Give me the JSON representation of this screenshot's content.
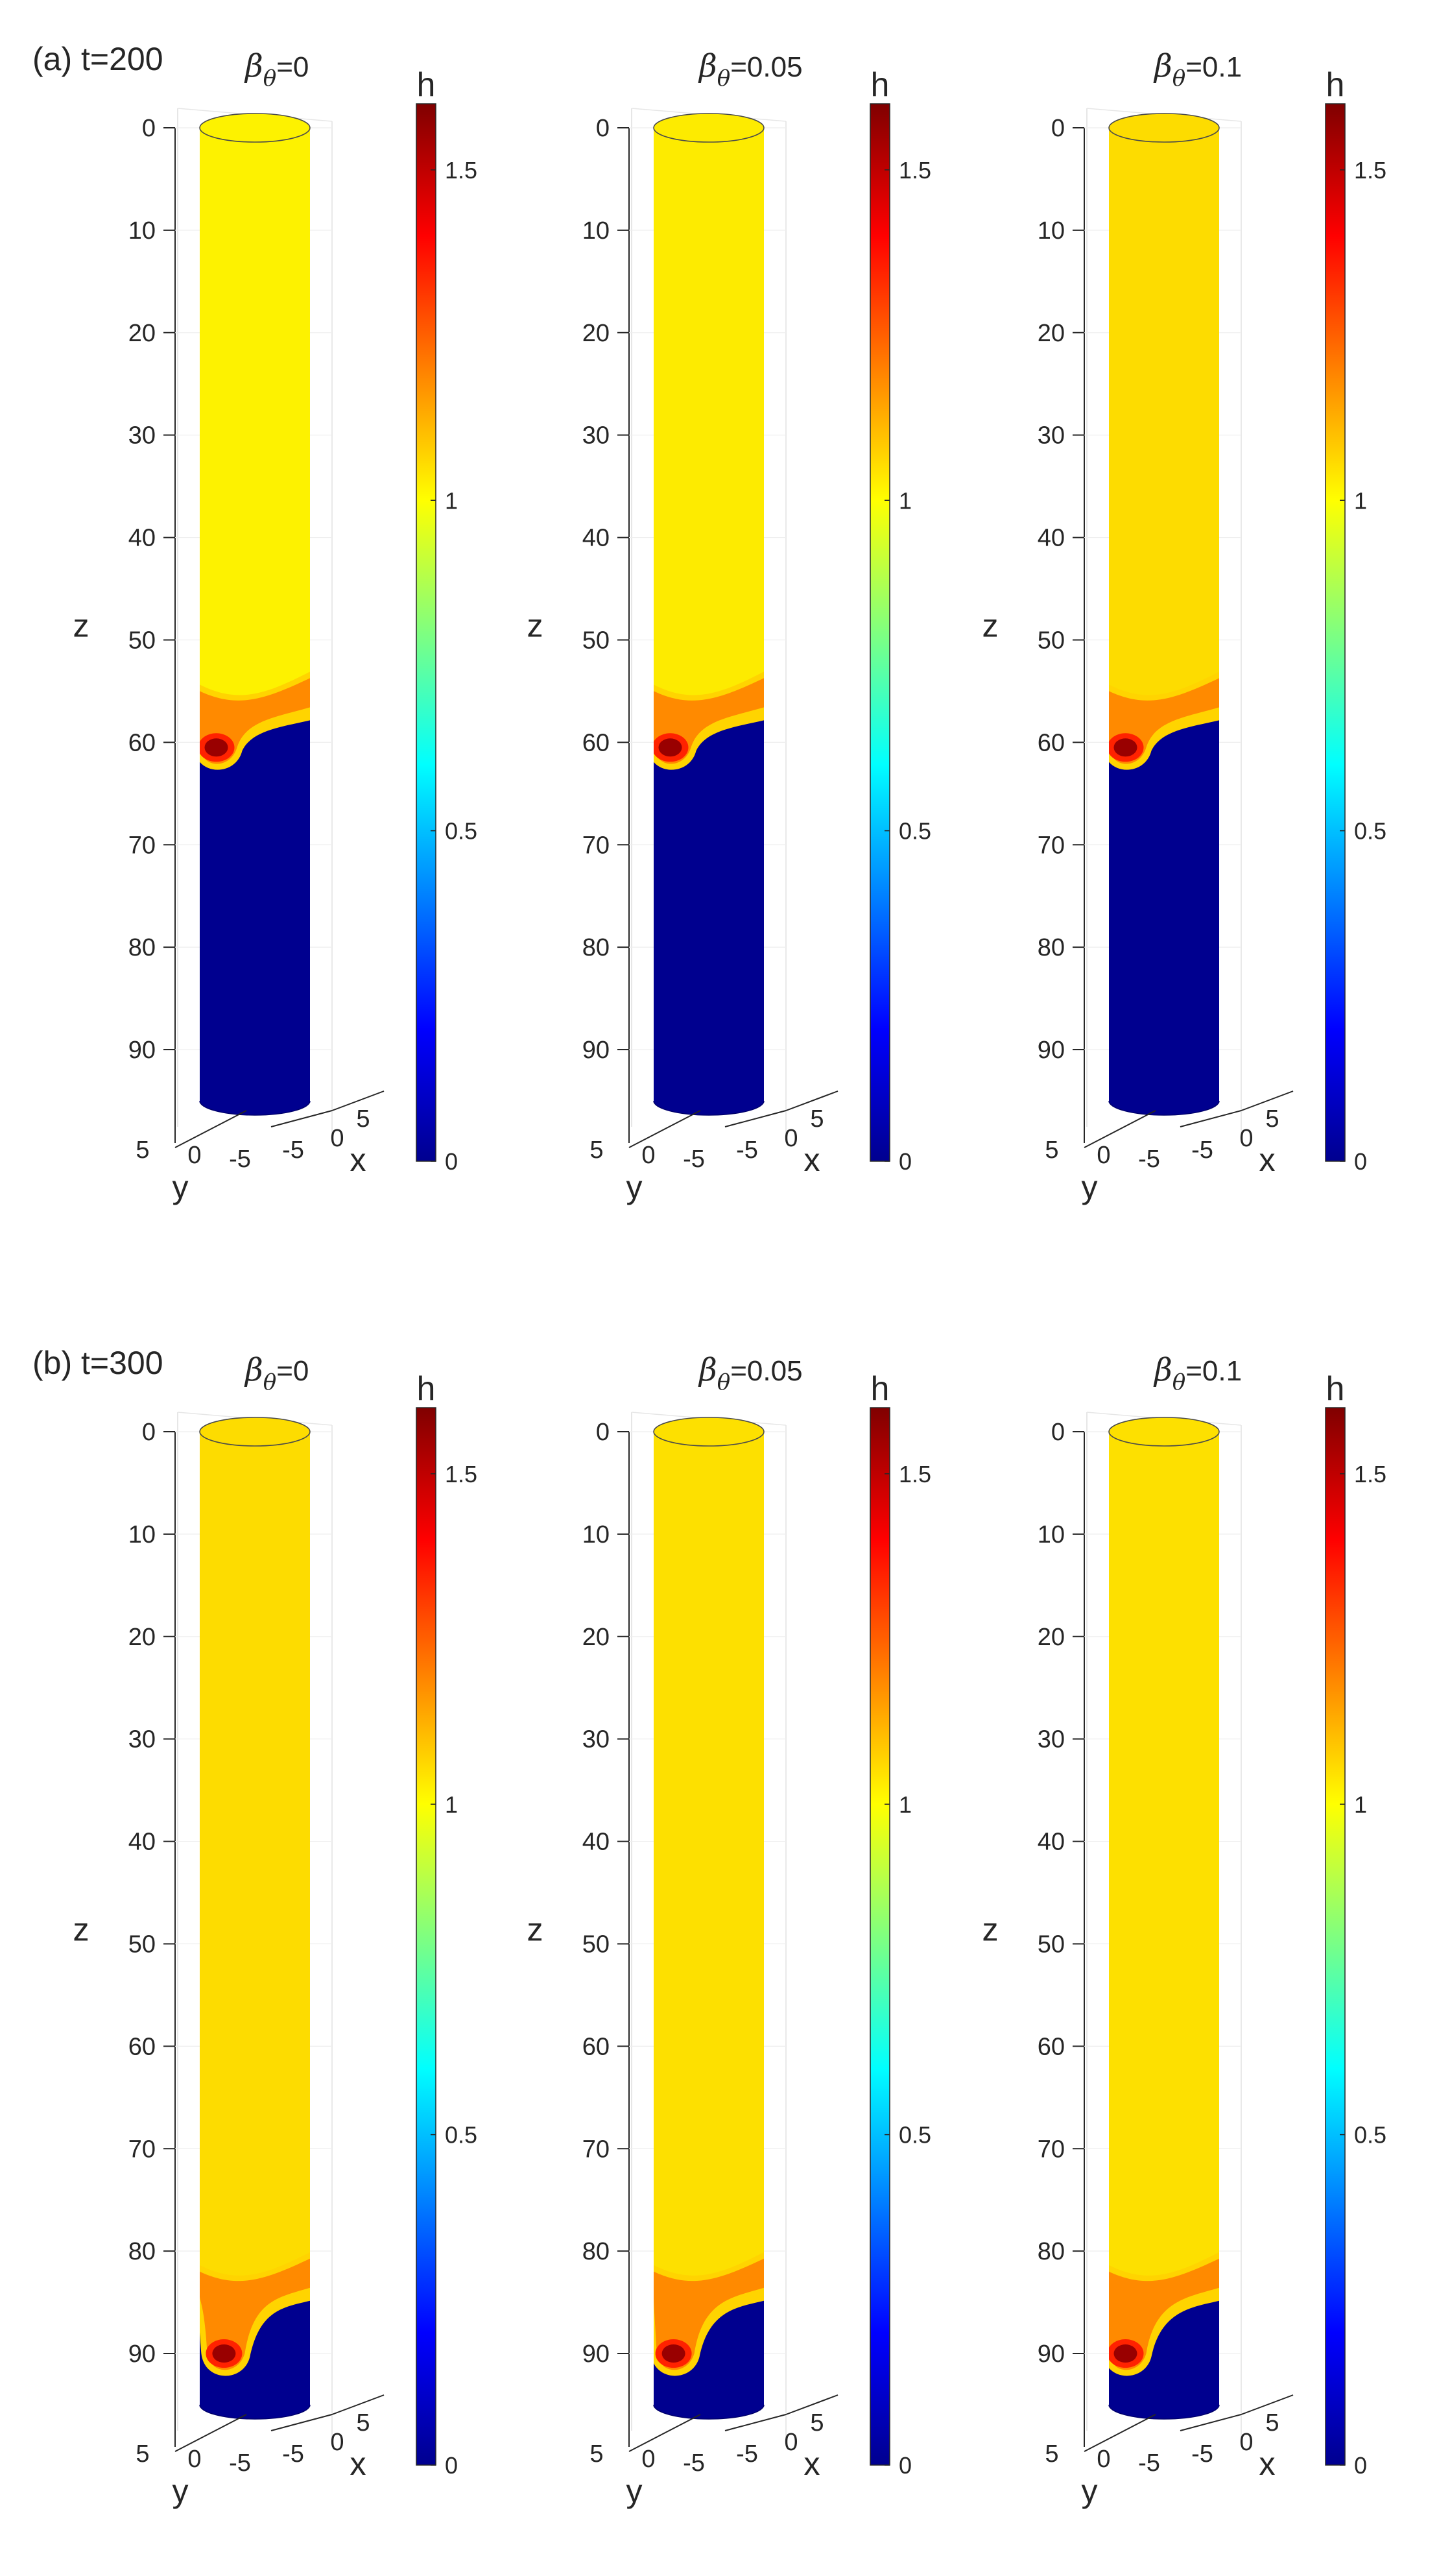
{
  "chart_data": {
    "type": "heatmap",
    "description_note": "3D surface of film thickness h on a vertical cylinder; colour encodes h (jet colormap)",
    "rows": [
      {
        "label": "(a) t=200",
        "time": 200,
        "panels": [
          {
            "beta_symbol": "β",
            "beta_sub": "θ",
            "beta_text": "=0",
            "beta": 0,
            "front_z": 55,
            "tip_z": 60.5,
            "tip_offset": -0.35,
            "film_color": "#fdf200",
            "peak_h": 1.55
          },
          {
            "beta_symbol": "β",
            "beta_sub": "θ",
            "beta_text": "=0.05",
            "beta": 0.05,
            "front_z": 55,
            "tip_z": 60.5,
            "tip_offset": -0.35,
            "film_color": "#fdeb00",
            "peak_h": 1.55
          },
          {
            "beta_symbol": "β",
            "beta_sub": "θ",
            "beta_text": "=0.1",
            "beta": 0.1,
            "front_z": 55,
            "tip_z": 60.5,
            "tip_offset": -0.35,
            "film_color": "#fddc00",
            "peak_h": 1.55
          }
        ]
      },
      {
        "label": "(b) t=300",
        "time": 300,
        "panels": [
          {
            "beta_symbol": "β",
            "beta_sub": "θ",
            "beta_text": "=0",
            "beta": 0,
            "front_z": 82,
            "tip_z": 90,
            "tip_offset": -0.28,
            "film_color": "#fddc00",
            "peak_h": 1.55
          },
          {
            "beta_symbol": "β",
            "beta_sub": "θ",
            "beta_text": "=0.05",
            "beta": 0.05,
            "front_z": 82,
            "tip_z": 90,
            "tip_offset": -0.32,
            "film_color": "#fde000",
            "peak_h": 1.55
          },
          {
            "beta_symbol": "β",
            "beta_sub": "θ",
            "beta_text": "=0.1",
            "beta": 0.1,
            "front_z": 82,
            "tip_z": 90,
            "tip_offset": -0.35,
            "film_color": "#fde000",
            "peak_h": 1.55
          }
        ]
      }
    ],
    "z_axis": {
      "label": "z",
      "ticks": [
        0,
        10,
        20,
        30,
        40,
        50,
        60,
        70,
        80,
        90
      ],
      "tick_labels": [
        "0",
        "10",
        "20",
        "30",
        "40",
        "50",
        "60",
        "70",
        "80",
        "90"
      ],
      "range": [
        0,
        95
      ],
      "reversed": true
    },
    "y_axis": {
      "label": "y",
      "tick_labels": [
        "5",
        "0",
        "-5"
      ],
      "ticks": [
        5,
        0,
        -5
      ]
    },
    "x_axis": {
      "label": "x",
      "tick_labels": [
        "-5",
        "0",
        "5"
      ],
      "ticks": [
        -5,
        0,
        5
      ]
    },
    "colorbar": {
      "title": "h",
      "range": [
        0,
        1.6
      ],
      "ticks": [
        0,
        0.5,
        1,
        1.5
      ],
      "tick_labels": [
        "0",
        "0.5",
        "1",
        "1.5"
      ],
      "colormap": "jet",
      "colors": {
        "dark_blue": "#00008f",
        "blue": "#0000ff",
        "cyan": "#00ffff",
        "yellow": "#ffff00",
        "red": "#ff0000",
        "dark_red": "#800000"
      }
    },
    "dry_region_color": "#00008f"
  }
}
